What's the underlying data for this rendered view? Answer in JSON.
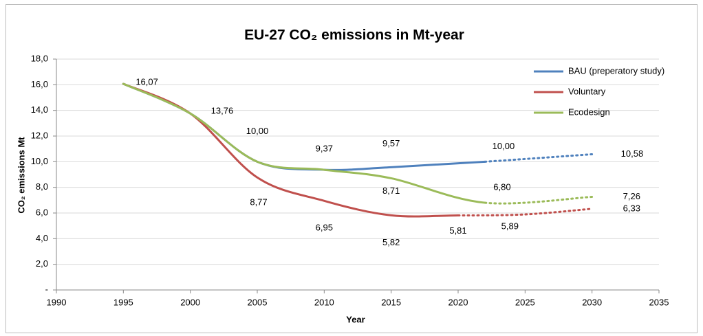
{
  "chart_data": {
    "type": "line",
    "title": "EU-27 CO₂ emissions in Mt-year",
    "xlabel": "Year",
    "ylabel": "CO₂ emissions Mt",
    "xlim": [
      1990,
      2035
    ],
    "xticks": [
      1990,
      1995,
      2000,
      2005,
      2010,
      2015,
      2020,
      2025,
      2030,
      2035
    ],
    "ylim": [
      0,
      18
    ],
    "yticks": [
      {
        "value": 0,
        "label": "-"
      },
      {
        "value": 2,
        "label": "2,0"
      },
      {
        "value": 4,
        "label": "4,0"
      },
      {
        "value": 6,
        "label": "6,0"
      },
      {
        "value": 8,
        "label": "8,0"
      },
      {
        "value": 10,
        "label": "10,0"
      },
      {
        "value": 12,
        "label": "12,0"
      },
      {
        "value": 14,
        "label": "14,0"
      },
      {
        "value": 16,
        "label": "16,0"
      },
      {
        "value": 18,
        "label": "18,0"
      }
    ],
    "grid": true,
    "legend": "top-right",
    "smooth": true,
    "series": [
      {
        "name": "BAU (preperatory study)",
        "color": "#4f81bd",
        "x": [
          1995,
          2000,
          2005,
          2010,
          2015,
          2022,
          2030
        ],
        "values": [
          16.07,
          13.76,
          10.0,
          9.37,
          9.57,
          10.0,
          10.58
        ],
        "value_labels": [
          "16,07",
          "13,76",
          "10,00",
          "9,37",
          "9,57",
          "10,00",
          "10,58"
        ],
        "dotted": [
          false,
          false,
          false,
          false,
          false,
          false,
          true
        ]
      },
      {
        "name": "Voluntary",
        "color": "#c0504d",
        "x": [
          1995,
          2000,
          2005,
          2010,
          2015,
          2020,
          2025,
          2030
        ],
        "values": [
          16.07,
          13.76,
          8.77,
          6.95,
          5.82,
          5.81,
          5.89,
          6.33
        ],
        "value_labels": [
          null,
          null,
          "8,77",
          "6,95",
          "5,82",
          "5,81",
          "5,89",
          "6,33"
        ],
        "dotted": [
          false,
          false,
          false,
          false,
          false,
          false,
          true,
          true
        ]
      },
      {
        "name": "Ecodesign",
        "color": "#9bbb59",
        "x": [
          1995,
          2000,
          2005,
          2010,
          2015,
          2022,
          2030
        ],
        "values": [
          16.07,
          13.76,
          10.0,
          9.37,
          8.71,
          6.8,
          7.26
        ],
        "value_labels": [
          null,
          null,
          null,
          null,
          "8,71",
          "6,80",
          "7,26"
        ],
        "dotted": [
          false,
          false,
          false,
          false,
          false,
          false,
          true
        ]
      }
    ]
  }
}
